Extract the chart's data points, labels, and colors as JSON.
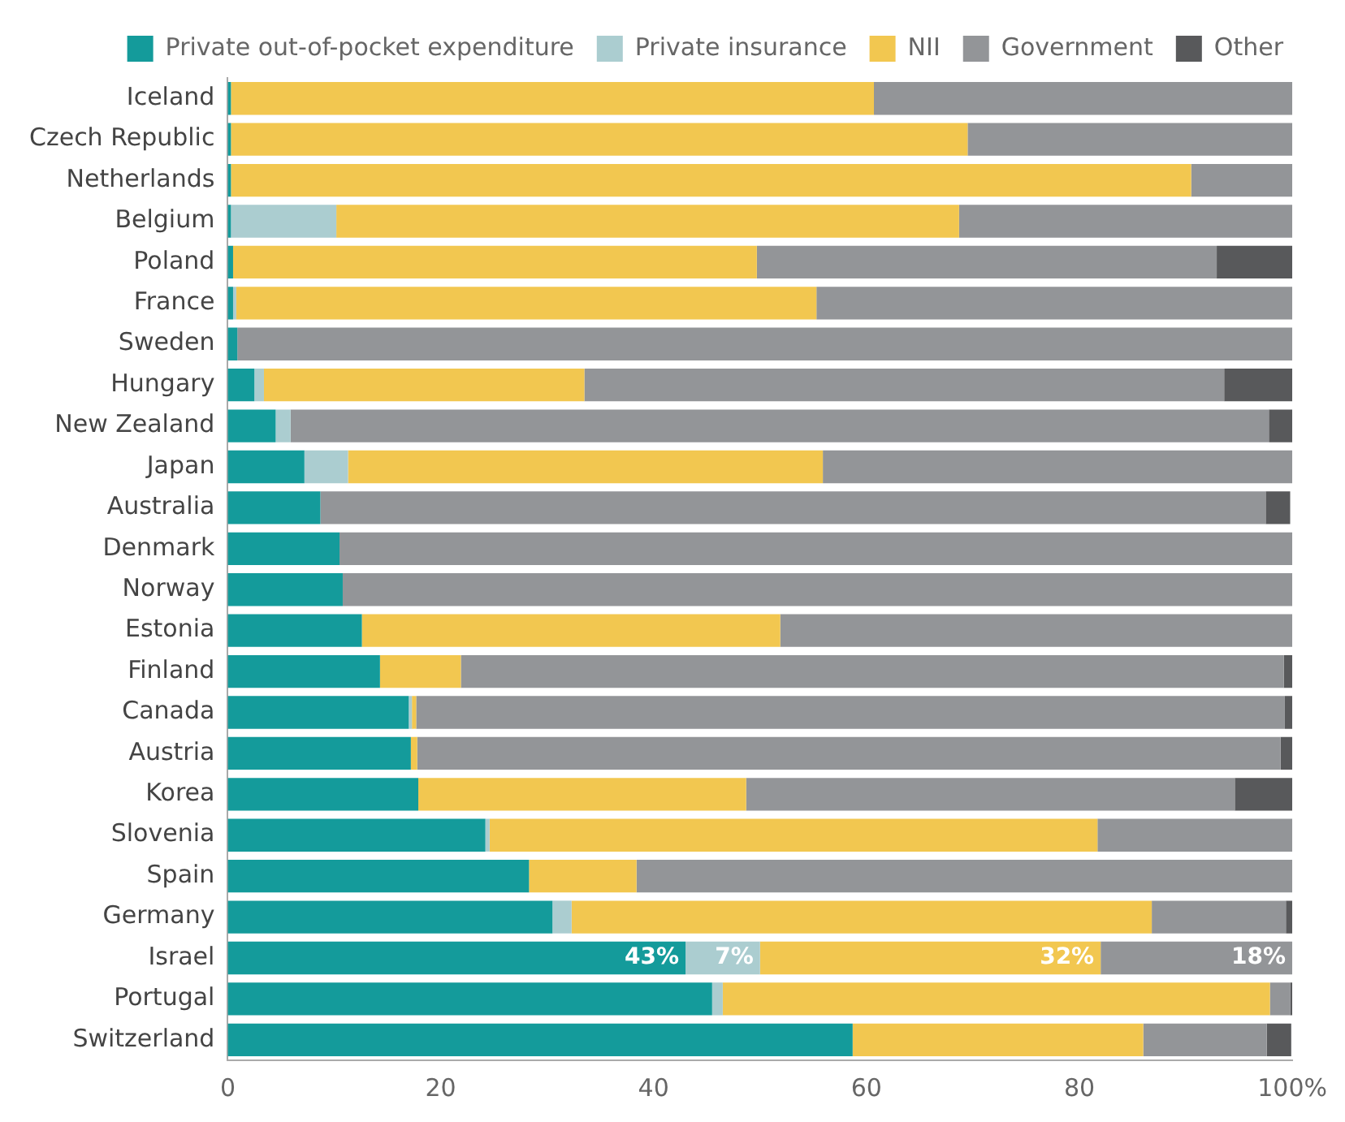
{
  "chart_data": {
    "type": "bar",
    "orientation": "horizontal",
    "stacked": true,
    "legend": "top",
    "grid": false,
    "categories": [
      "Iceland",
      "Czech Republic",
      "Netherlands",
      "Belgium",
      "Poland",
      "France",
      "Sweden",
      "Hungary",
      "New Zealand",
      "Japan",
      "Australia",
      "Denmark",
      "Norway",
      "Estonia",
      "Finland",
      "Canada",
      "Austria",
      "Korea",
      "Slovenia",
      "Spain",
      "Germany",
      "Israel",
      "Portugal",
      "Switzerland"
    ],
    "xlim": [
      0,
      100
    ],
    "xticks": [
      0,
      20,
      40,
      60,
      80,
      {
        "value": 100,
        "label": "100%"
      }
    ],
    "series": [
      {
        "name": "Private out-of-pocket expenditure",
        "color": "#149b9b",
        "values": [
          0.3,
          0.3,
          0.3,
          0.3,
          0.5,
          0.5,
          0.9,
          2.5,
          4.5,
          7.2,
          8.7,
          10.5,
          10.8,
          12.6,
          14.3,
          17.0,
          17.2,
          17.9,
          24.2,
          28.3,
          30.5,
          43,
          45.5,
          58.7
        ],
        "value_labels": [
          null,
          null,
          null,
          null,
          null,
          null,
          null,
          null,
          null,
          null,
          null,
          null,
          null,
          null,
          null,
          null,
          null,
          null,
          null,
          null,
          null,
          "43%",
          null,
          null
        ]
      },
      {
        "name": "Private insurance",
        "color": "#abcdd0",
        "values": [
          0,
          0,
          0,
          9.9,
          0,
          0.3,
          0,
          0.9,
          1.4,
          4.1,
          null,
          0,
          0,
          0,
          0,
          0.3,
          0,
          0,
          0.4,
          0,
          1.8,
          7,
          1.0,
          null
        ],
        "value_labels": [
          null,
          null,
          null,
          null,
          null,
          null,
          null,
          null,
          null,
          null,
          null,
          null,
          null,
          null,
          null,
          null,
          null,
          null,
          null,
          null,
          null,
          "7%",
          null,
          null
        ]
      },
      {
        "name": "NII",
        "color": "#f2c750",
        "values": [
          60.4,
          69.2,
          90.2,
          58.5,
          49.2,
          54.5,
          0,
          30.1,
          0,
          44.6,
          0,
          0,
          0,
          39.3,
          7.6,
          0.4,
          0.6,
          30.8,
          57.1,
          10.1,
          54.5,
          32,
          51.4,
          27.3
        ],
        "value_labels": [
          null,
          null,
          null,
          null,
          null,
          null,
          null,
          null,
          null,
          null,
          null,
          null,
          null,
          null,
          null,
          null,
          null,
          null,
          null,
          null,
          null,
          "32%",
          null,
          null
        ]
      },
      {
        "name": "Government",
        "color": "#939598",
        "values": [
          39.3,
          30.5,
          9.5,
          31.3,
          43.2,
          44.7,
          99.1,
          60.1,
          91.9,
          44.1,
          88.8,
          89.5,
          89.2,
          48.1,
          77.3,
          81.6,
          81.1,
          45.9,
          18.3,
          61.6,
          12.6,
          18,
          1.9,
          11.6
        ],
        "value_labels": [
          null,
          null,
          null,
          null,
          null,
          null,
          null,
          null,
          null,
          null,
          null,
          null,
          null,
          null,
          null,
          null,
          null,
          null,
          null,
          null,
          null,
          "18%",
          null,
          null
        ]
      },
      {
        "name": "Other",
        "color": "#58595b",
        "values": [
          0,
          0,
          0,
          0,
          7.1,
          0,
          0,
          6.4,
          2.2,
          0,
          2.3,
          0,
          0,
          0,
          0.8,
          0.7,
          1.1,
          5.4,
          0,
          0,
          0.6,
          0,
          0.2,
          2.3
        ]
      }
    ]
  }
}
